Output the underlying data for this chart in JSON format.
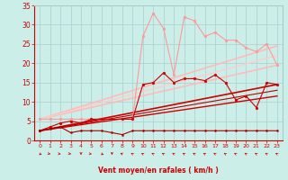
{
  "background_color": "#cceee8",
  "grid_color": "#aacccc",
  "xlabel": "Vent moyen/en rafales ( km/h )",
  "xlabel_color": "#cc0000",
  "tick_color": "#cc0000",
  "xlim": [
    -0.5,
    23.5
  ],
  "ylim": [
    0,
    35
  ],
  "xticks": [
    0,
    1,
    2,
    3,
    4,
    5,
    6,
    7,
    8,
    9,
    10,
    11,
    12,
    13,
    14,
    15,
    16,
    17,
    18,
    19,
    20,
    21,
    22,
    23
  ],
  "yticks": [
    0,
    5,
    10,
    15,
    20,
    25,
    30,
    35
  ],
  "lines": [
    {
      "x": [
        0,
        1,
        2,
        3,
        4,
        5,
        6,
        7,
        8,
        9,
        10,
        11,
        12,
        13,
        14,
        15,
        16,
        17,
        18,
        19,
        20,
        21,
        22,
        23
      ],
      "y": [
        5.5,
        5.5,
        5.5,
        5.5,
        5.5,
        5.5,
        5.5,
        5.5,
        5.5,
        5.5,
        27,
        33,
        29,
        17,
        32,
        31,
        27,
        28,
        26,
        26,
        24,
        23,
        25,
        19.5
      ],
      "color": "#ff9999",
      "linewidth": 0.8,
      "marker": "o",
      "markersize": 2.0,
      "zorder": 4
    },
    {
      "x": [
        0,
        1,
        2,
        3,
        4,
        5,
        6,
        7,
        8,
        9,
        10,
        11,
        12,
        13,
        14,
        15,
        16,
        17,
        18,
        19,
        20,
        21,
        22,
        23
      ],
      "y": [
        2.5,
        3.5,
        4.5,
        5.0,
        4.5,
        5.5,
        5.5,
        5.5,
        5.5,
        5.5,
        14.5,
        15,
        17.5,
        15,
        16,
        16,
        15.5,
        17,
        15,
        10.5,
        11.5,
        8.5,
        15,
        14.5
      ],
      "color": "#cc0000",
      "linewidth": 0.8,
      "marker": "o",
      "markersize": 2.0,
      "zorder": 4
    },
    {
      "x": [
        0,
        1,
        2,
        3,
        4,
        5,
        6,
        7,
        8,
        9,
        10,
        11,
        12,
        13,
        14,
        15,
        16,
        17,
        18,
        19,
        20,
        21,
        22,
        23
      ],
      "y": [
        2.5,
        3.0,
        3.5,
        2.0,
        2.5,
        2.5,
        2.5,
        2.0,
        1.5,
        2.5,
        2.5,
        2.5,
        2.5,
        2.5,
        2.5,
        2.5,
        2.5,
        2.5,
        2.5,
        2.5,
        2.5,
        2.5,
        2.5,
        2.5
      ],
      "color": "#aa0000",
      "linewidth": 0.8,
      "marker": "o",
      "markersize": 1.5,
      "zorder": 4
    },
    {
      "x": [
        0,
        23
      ],
      "y": [
        5.5,
        24.5
      ],
      "color": "#ffbbbb",
      "linewidth": 1.2,
      "marker": null,
      "zorder": 2
    },
    {
      "x": [
        0,
        23
      ],
      "y": [
        5.5,
        19.5
      ],
      "color": "#ffbbbb",
      "linewidth": 1.2,
      "marker": null,
      "zorder": 2
    },
    {
      "x": [
        0,
        23
      ],
      "y": [
        5.5,
        22.0
      ],
      "color": "#ffcccc",
      "linewidth": 1.0,
      "marker": null,
      "zorder": 2
    },
    {
      "x": [
        0,
        23
      ],
      "y": [
        2.5,
        14.5
      ],
      "color": "#cc0000",
      "linewidth": 1.2,
      "marker": null,
      "zorder": 2
    },
    {
      "x": [
        0,
        23
      ],
      "y": [
        2.5,
        11.5
      ],
      "color": "#cc0000",
      "linewidth": 1.0,
      "marker": null,
      "zorder": 2
    },
    {
      "x": [
        0,
        23
      ],
      "y": [
        2.5,
        13.0
      ],
      "color": "#bb0000",
      "linewidth": 0.8,
      "marker": null,
      "zorder": 2
    }
  ],
  "wind_arrows_angles": [
    45,
    70,
    80,
    70,
    0,
    80,
    45,
    0,
    225,
    215,
    215,
    215,
    215,
    215,
    215,
    215,
    215,
    215,
    215,
    215,
    215,
    215,
    215,
    215
  ]
}
